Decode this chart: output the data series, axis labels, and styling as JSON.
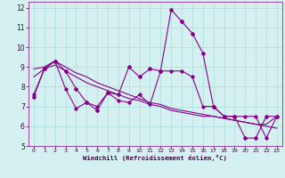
{
  "xlabel": "Windchill (Refroidissement éolien,°C)",
  "background_color": "#d4f0f0",
  "grid_color": "#aadcdc",
  "line_color": "#880088",
  "xlim": [
    -0.5,
    23.5
  ],
  "ylim": [
    5,
    12.3
  ],
  "xticks": [
    0,
    1,
    2,
    3,
    4,
    5,
    6,
    7,
    8,
    9,
    10,
    11,
    12,
    13,
    14,
    15,
    16,
    17,
    18,
    19,
    20,
    21,
    22,
    23
  ],
  "yticks": [
    5,
    6,
    7,
    8,
    9,
    10,
    11,
    12
  ],
  "line1_x": [
    0,
    1,
    2,
    3,
    4,
    5,
    6,
    7,
    8,
    9,
    10,
    11,
    12,
    13,
    14,
    15,
    16,
    17,
    18,
    19,
    20,
    21,
    22,
    23
  ],
  "line1_y": [
    7.5,
    8.9,
    9.3,
    8.8,
    7.9,
    7.2,
    6.8,
    7.7,
    7.6,
    9.0,
    8.5,
    8.9,
    8.8,
    11.9,
    11.3,
    10.7,
    9.7,
    7.0,
    6.5,
    6.5,
    5.4,
    5.4,
    6.5,
    6.5
  ],
  "line2_x": [
    0,
    1,
    2,
    3,
    4,
    5,
    6,
    7,
    8,
    9,
    10,
    11,
    12,
    13,
    14,
    15,
    16,
    17,
    18,
    19,
    20,
    21,
    22,
    23
  ],
  "line2_y": [
    8.9,
    9.0,
    9.3,
    9.0,
    8.7,
    8.5,
    8.2,
    8.0,
    7.8,
    7.6,
    7.4,
    7.2,
    7.1,
    6.9,
    6.8,
    6.7,
    6.6,
    6.5,
    6.4,
    6.3,
    6.2,
    6.1,
    6.0,
    5.9
  ],
  "line3_x": [
    0,
    1,
    2,
    3,
    4,
    5,
    6,
    7,
    8,
    9,
    10,
    11,
    12,
    13,
    14,
    15,
    16,
    17,
    18,
    19,
    20,
    21,
    22,
    23
  ],
  "line3_y": [
    8.5,
    8.9,
    9.1,
    8.8,
    8.5,
    8.2,
    8.0,
    7.8,
    7.6,
    7.4,
    7.3,
    7.1,
    7.0,
    6.8,
    6.7,
    6.6,
    6.5,
    6.5,
    6.4,
    6.3,
    6.2,
    6.1,
    6.1,
    6.5
  ],
  "line4_x": [
    0,
    1,
    2,
    3,
    4,
    5,
    6,
    7,
    8,
    9,
    10,
    11,
    12,
    13,
    14,
    15,
    16,
    17,
    18,
    19,
    20,
    21,
    22,
    23
  ],
  "line4_y": [
    7.6,
    8.9,
    9.3,
    7.9,
    6.9,
    7.2,
    7.0,
    7.7,
    7.3,
    7.2,
    7.6,
    7.1,
    8.8,
    8.8,
    8.8,
    8.5,
    7.0,
    7.0,
    6.5,
    6.5,
    6.5,
    6.5,
    5.4,
    6.5
  ]
}
